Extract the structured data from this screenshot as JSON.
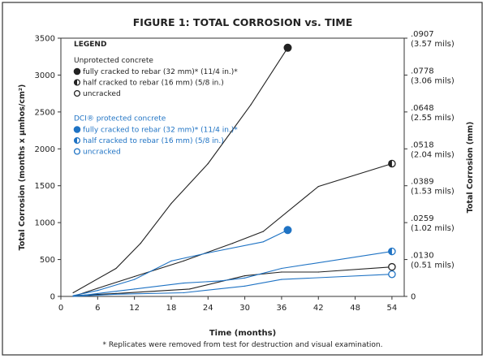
{
  "chart_data": {
    "type": "line",
    "title": "FIGURE 1: TOTAL CORROSION vs. TIME",
    "xlabel": "Time (months)",
    "ylabel": "Total Corrosion (months x µmhos/cm²)",
    "y2label": "Total Corrosion (mm)",
    "footnote": "* Replicates were removed from test for destruction and visual examination.",
    "xlim": [
      0,
      56
    ],
    "ylim": [
      0,
      3500
    ],
    "x_ticks": [
      0,
      6,
      12,
      18,
      24,
      30,
      36,
      42,
      48,
      54
    ],
    "y_ticks": [
      0,
      500,
      1000,
      1500,
      2000,
      2500,
      3000,
      3500
    ],
    "y2_ticks": [
      {
        "at": 0,
        "label": "0",
        "sub": ""
      },
      {
        "at": 500,
        "label": ".0130",
        "sub": "(0.51 mils)"
      },
      {
        "at": 1000,
        "label": ".0259",
        "sub": "(1.02 mils)"
      },
      {
        "at": 1500,
        "label": ".0389",
        "sub": "(1.53 mils)"
      },
      {
        "at": 2000,
        "label": ".0518",
        "sub": "(2.04 mils)"
      },
      {
        "at": 2500,
        "label": ".0648",
        "sub": "(2.55 mils)"
      },
      {
        "at": 3000,
        "label": ".0778",
        "sub": "(3.06 mils)"
      },
      {
        "at": 3500,
        "label": ".0907",
        "sub": "(3.57 mils)"
      }
    ],
    "grid": false,
    "legend": {
      "title": "LEGEND",
      "groups": [
        {
          "heading": "Unprotected concrete",
          "color": "#222222",
          "items": [
            "fully cracked to rebar (32 mm)* (11/4 in.)*",
            "half cracked to rebar (16 mm) (5/8 in.)",
            "uncracked"
          ]
        },
        {
          "heading": "DCI® protected concrete",
          "color": "#1f73c4",
          "items": [
            "fully cracked to rebar (32 mm)* (11/4 in.)*",
            "half cracked to rebar (16 mm) (5/8 in.)",
            "uncracked"
          ]
        }
      ]
    },
    "series": [
      {
        "name": "Unprotected concrete — fully cracked to rebar (32 mm)* (11/4 in.)*",
        "group": "unprotected",
        "marker": "full",
        "x": [
          2,
          9,
          13,
          18,
          24,
          31,
          37
        ],
        "y": [
          50,
          380,
          720,
          1260,
          1800,
          2600,
          3370
        ]
      },
      {
        "name": "Unprotected concrete — half cracked to rebar (16 mm) (5/8 in.)",
        "group": "unprotected",
        "marker": "half",
        "x": [
          2,
          6,
          12,
          20,
          28,
          33,
          42,
          54
        ],
        "y": [
          0,
          110,
          270,
          480,
          720,
          880,
          1490,
          1800
        ]
      },
      {
        "name": "Unprotected concrete — uncracked",
        "group": "unprotected",
        "marker": "empty",
        "x": [
          2,
          9,
          21,
          30,
          36,
          42,
          54
        ],
        "y": [
          10,
          40,
          100,
          280,
          330,
          330,
          400
        ]
      },
      {
        "name": "DCI® protected concrete — fully cracked to rebar (32 mm)* (11/4 in.)*",
        "group": "dci",
        "marker": "full",
        "x": [
          2,
          6,
          12,
          18,
          24,
          33,
          37
        ],
        "y": [
          10,
          80,
          230,
          480,
          590,
          740,
          900
        ]
      },
      {
        "name": "DCI® protected concrete — half cracked to rebar (16 mm) (5/8 in.)",
        "group": "dci",
        "marker": "half",
        "x": [
          2,
          6,
          12,
          20,
          26,
          30,
          36,
          54
        ],
        "y": [
          0,
          40,
          100,
          180,
          210,
          250,
          380,
          610
        ]
      },
      {
        "name": "DCI® protected concrete — uncracked",
        "group": "dci",
        "marker": "empty",
        "x": [
          2,
          9,
          20,
          30,
          36,
          54
        ],
        "y": [
          0,
          30,
          50,
          140,
          230,
          300
        ]
      }
    ]
  }
}
